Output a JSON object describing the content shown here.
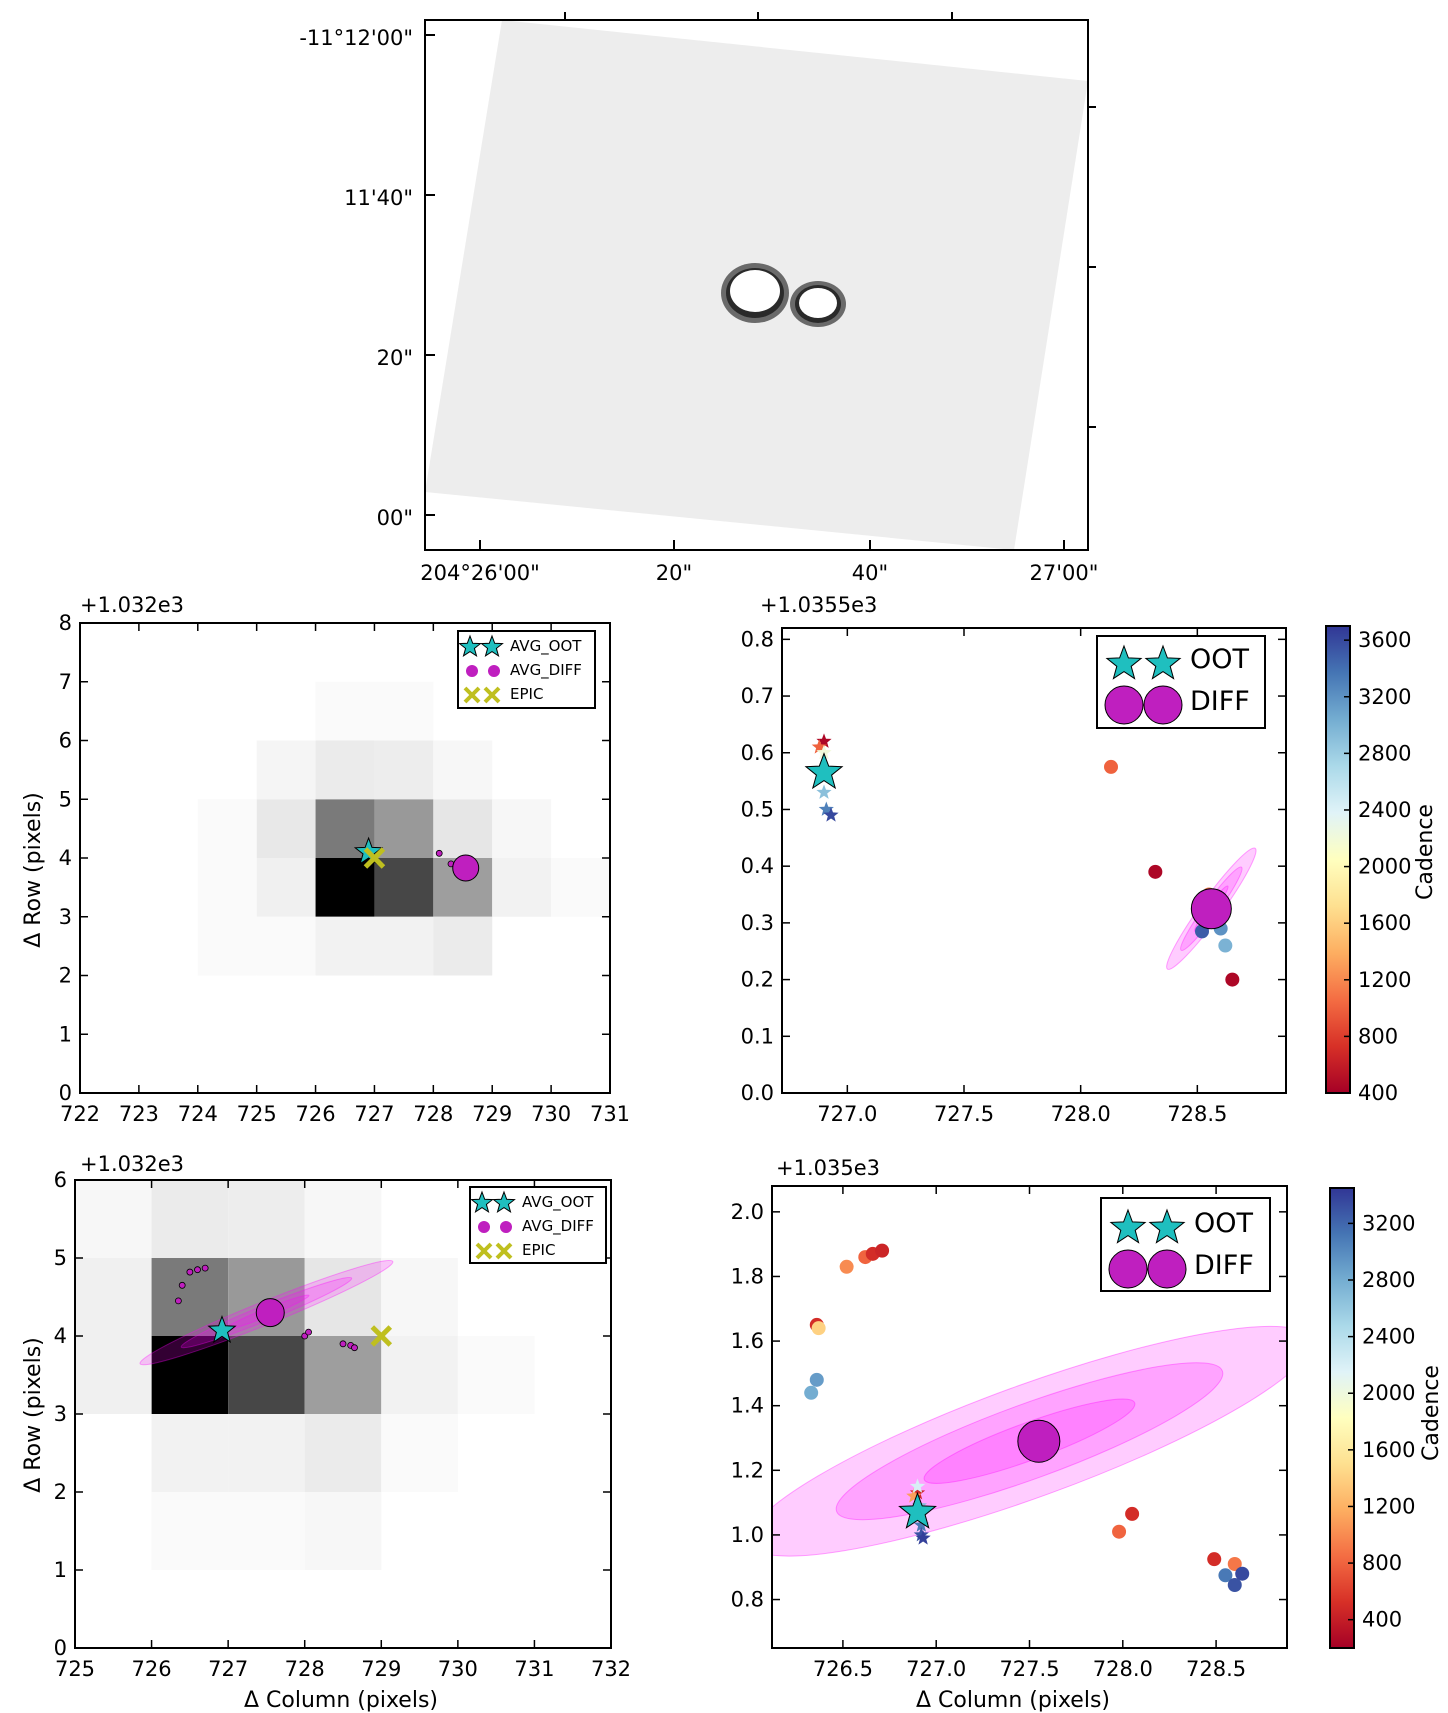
{
  "colors": {
    "oot": "#1fbfbf",
    "diff": "#bf1fbf",
    "epic": "#bfbf1f",
    "ellipse": "#ff00ff",
    "colorbar": [
      "#a50026",
      "#d73027",
      "#f46d43",
      "#fdae61",
      "#fee090",
      "#ffffbf",
      "#e0f3f8",
      "#abd9e9",
      "#74add1",
      "#4575b4",
      "#313695"
    ]
  },
  "chart_data": [
    {
      "id": "sky",
      "type": "heatmap",
      "title": "",
      "y_ticks": [
        "-11°12'00\"",
        "11'40\"",
        "20\"",
        "00\""
      ],
      "x_ticks": [
        "204°26'00\"",
        "20\"",
        "40\"",
        "27'00\""
      ],
      "description_values": {
        "stars": 2
      }
    },
    {
      "id": "p1",
      "type": "heatmap",
      "offset_label": "+1.032e3",
      "ylabel": "Δ Row (pixels)",
      "xlim": [
        722,
        731
      ],
      "ylim": [
        0,
        8
      ],
      "x_ticks": [
        "722",
        "723",
        "724",
        "725",
        "726",
        "727",
        "728",
        "729",
        "730",
        "731"
      ],
      "y_ticks": [
        "0",
        "1",
        "2",
        "3",
        "4",
        "5",
        "6",
        "7",
        "8"
      ],
      "cells": [
        [
          725,
          3,
          0.06
        ],
        [
          726,
          3,
          1.0
        ],
        [
          727,
          3,
          0.72
        ],
        [
          728,
          3,
          0.38
        ],
        [
          729,
          3,
          0.05
        ],
        [
          730,
          3,
          0.02
        ],
        [
          725,
          4,
          0.09
        ],
        [
          726,
          4,
          0.52
        ],
        [
          727,
          4,
          0.4
        ],
        [
          728,
          4,
          0.1
        ],
        [
          729,
          4,
          0.03
        ],
        [
          725,
          5,
          0.04
        ],
        [
          726,
          5,
          0.08
        ],
        [
          727,
          5,
          0.07
        ],
        [
          728,
          5,
          0.03
        ],
        [
          724,
          2,
          0.02
        ],
        [
          725,
          2,
          0.02
        ],
        [
          726,
          2,
          0.05
        ],
        [
          727,
          2,
          0.05
        ],
        [
          728,
          2,
          0.08
        ],
        [
          726,
          6,
          0.02
        ],
        [
          727,
          6,
          0.02
        ],
        [
          724,
          4,
          0.02
        ],
        [
          724,
          3,
          0.02
        ]
      ],
      "legend": [
        "AVG_OOT",
        "AVG_DIFF",
        "EPIC"
      ],
      "oot": [
        726.9,
        4.1
      ],
      "diff": [
        728.55,
        3.83
      ],
      "epic": [
        727.0,
        4.0
      ],
      "small_diff": [
        [
          728.1,
          4.08
        ],
        [
          728.3,
          3.9
        ]
      ]
    },
    {
      "id": "p2",
      "type": "scatter",
      "offset_label": "+1.0355e3",
      "xlim": [
        726.72,
        728.88
      ],
      "ylim": [
        0.0,
        0.82
      ],
      "x_ticks": [
        727.0,
        727.5,
        728.0,
        728.5
      ],
      "x_tick_labels": [
        "727.0",
        "727.5",
        "728.0",
        "728.5"
      ],
      "y_ticks": [
        0.0,
        0.1,
        0.2,
        0.3,
        0.4,
        0.5,
        0.6,
        0.7,
        0.8
      ],
      "y_tick_labels": [
        "0.0",
        "0.1",
        "0.2",
        "0.3",
        "0.4",
        "0.5",
        "0.6",
        "0.7",
        "0.8"
      ],
      "legend": [
        "OOT",
        "DIFF"
      ],
      "colorbar_label": "Cadence",
      "colorbar_range": [
        400,
        3700
      ],
      "colorbar_ticks": [
        "400",
        "800",
        "1200",
        "1600",
        "2000",
        "2400",
        "2800",
        "3200",
        "3600"
      ],
      "oot_mean": [
        726.9,
        0.565
      ],
      "diff_mean": [
        728.56,
        0.325
      ],
      "ellipses": [
        {
          "cx": 728.56,
          "cy": 0.325,
          "rx": 0.32,
          "ry": 0.045,
          "angle": -54
        },
        {
          "cx": 728.56,
          "cy": 0.325,
          "rx": 0.22,
          "ry": 0.03,
          "angle": -54
        },
        {
          "cx": 728.56,
          "cy": 0.325,
          "rx": 0.12,
          "ry": 0.016,
          "angle": -54
        }
      ],
      "oot_points": [
        [
          726.9,
          0.62,
          450
        ],
        [
          726.88,
          0.61,
          1000
        ],
        [
          726.9,
          0.6,
          2200
        ],
        [
          726.89,
          0.56,
          2500
        ],
        [
          726.9,
          0.53,
          2900
        ],
        [
          726.91,
          0.5,
          3300
        ],
        [
          726.93,
          0.49,
          3600
        ]
      ],
      "diff_points": [
        [
          728.13,
          0.575,
          1000
        ],
        [
          728.32,
          0.39,
          450
        ],
        [
          728.65,
          0.2,
          450
        ],
        [
          728.55,
          0.35,
          1100
        ],
        [
          728.52,
          0.285,
          3500
        ],
        [
          728.6,
          0.29,
          3200
        ],
        [
          728.62,
          0.26,
          3000
        ]
      ]
    },
    {
      "id": "p3",
      "type": "heatmap",
      "offset_label": "+1.032e3",
      "xlabel": "Δ Column (pixels)",
      "ylabel": "Δ Row (pixels)",
      "xlim": [
        725,
        732
      ],
      "ylim": [
        0,
        6
      ],
      "x_ticks": [
        "725",
        "726",
        "727",
        "728",
        "729",
        "730",
        "731",
        "732"
      ],
      "y_ticks": [
        "0",
        "1",
        "2",
        "3",
        "4",
        "5",
        "6"
      ],
      "cells": [
        [
          726,
          3,
          1.0
        ],
        [
          727,
          3,
          0.72
        ],
        [
          728,
          3,
          0.38
        ],
        [
          729,
          3,
          0.05
        ],
        [
          730,
          3,
          0.02
        ],
        [
          725,
          3,
          0.06
        ],
        [
          725,
          4,
          0.06
        ],
        [
          725,
          5,
          0.03
        ],
        [
          726,
          4,
          0.52
        ],
        [
          727,
          4,
          0.4
        ],
        [
          728,
          4,
          0.1
        ],
        [
          729,
          4,
          0.03
        ],
        [
          726,
          5,
          0.08
        ],
        [
          727,
          5,
          0.07
        ],
        [
          728,
          5,
          0.03
        ],
        [
          726,
          2,
          0.05
        ],
        [
          727,
          2,
          0.05
        ],
        [
          728,
          2,
          0.08
        ],
        [
          729,
          2,
          0.02
        ],
        [
          726,
          1,
          0.02
        ],
        [
          727,
          1,
          0.02
        ],
        [
          728,
          1,
          0.03
        ]
      ],
      "legend": [
        "AVG_OOT",
        "AVG_DIFF",
        "EPIC"
      ],
      "oot": [
        726.92,
        4.07
      ],
      "diff": [
        727.55,
        4.3
      ],
      "epic": [
        729.0,
        4.0
      ],
      "small_diff": [
        [
          726.4,
          4.65
        ],
        [
          726.35,
          4.45
        ],
        [
          726.5,
          4.82
        ],
        [
          726.6,
          4.85
        ],
        [
          726.7,
          4.87
        ],
        [
          728.0,
          4.0
        ],
        [
          728.05,
          4.05
        ],
        [
          728.5,
          3.9
        ],
        [
          728.6,
          3.88
        ],
        [
          728.65,
          3.85
        ]
      ],
      "ellipses": [
        {
          "cx": 727.5,
          "cy": 4.3,
          "rx": 1.78,
          "ry": 0.15,
          "angle": -22
        },
        {
          "cx": 727.5,
          "cy": 4.3,
          "rx": 1.2,
          "ry": 0.1,
          "angle": -22
        },
        {
          "cx": 727.5,
          "cy": 4.3,
          "rx": 0.6,
          "ry": 0.05,
          "angle": -22
        }
      ]
    },
    {
      "id": "p4",
      "type": "scatter",
      "offset_label": "+1.035e3",
      "xlabel": "Δ Column (pixels)",
      "xlim": [
        726.12,
        728.88
      ],
      "ylim": [
        0.65,
        2.08
      ],
      "x_ticks": [
        726.5,
        727.0,
        727.5,
        728.0,
        728.5
      ],
      "x_tick_labels": [
        "726.5",
        "727.0",
        "727.5",
        "728.0",
        "728.5"
      ],
      "y_ticks": [
        0.8,
        1.0,
        1.2,
        1.4,
        1.6,
        1.8,
        2.0
      ],
      "y_tick_labels": [
        "0.8",
        "1.0",
        "1.2",
        "1.4",
        "1.6",
        "1.8",
        "2.0"
      ],
      "legend": [
        "OOT",
        "DIFF"
      ],
      "colorbar_label": "Cadence",
      "colorbar_range": [
        200,
        3450
      ],
      "colorbar_ticks": [
        "400",
        "800",
        "1200",
        "1600",
        "2000",
        "2400",
        "2800",
        "3200"
      ],
      "oot_mean": [
        726.9,
        1.07
      ],
      "diff_mean": [
        727.55,
        1.29
      ],
      "ellipses": [
        {
          "cx": 727.5,
          "cy": 1.29,
          "rx": 1.6,
          "ry": 0.3,
          "angle": -20
        },
        {
          "cx": 727.5,
          "cy": 1.29,
          "rx": 1.1,
          "ry": 0.2,
          "angle": -20
        },
        {
          "cx": 727.5,
          "cy": 1.29,
          "rx": 0.6,
          "ry": 0.1,
          "angle": -20
        }
      ],
      "oot_points": [
        [
          726.9,
          1.13,
          450
        ],
        [
          726.88,
          1.12,
          1100
        ],
        [
          726.9,
          1.15,
          2200
        ],
        [
          726.91,
          1.09,
          2700
        ],
        [
          726.92,
          1.03,
          3100
        ],
        [
          726.92,
          1.0,
          3300
        ],
        [
          726.93,
          0.99,
          3400
        ]
      ],
      "diff_points": [
        [
          726.52,
          1.83,
          1000
        ],
        [
          726.62,
          1.86,
          800
        ],
        [
          726.66,
          1.87,
          500
        ],
        [
          726.71,
          1.88,
          450
        ],
        [
          726.36,
          1.65,
          500
        ],
        [
          726.37,
          1.64,
          1400
        ],
        [
          726.36,
          1.48,
          2900
        ],
        [
          726.33,
          1.44,
          2800
        ],
        [
          728.05,
          1.065,
          500
        ],
        [
          727.98,
          1.01,
          800
        ],
        [
          728.49,
          0.925,
          500
        ],
        [
          728.6,
          0.91,
          900
        ],
        [
          728.55,
          0.875,
          3100
        ],
        [
          728.64,
          0.88,
          3350
        ],
        [
          728.6,
          0.845,
          3300
        ]
      ]
    }
  ]
}
